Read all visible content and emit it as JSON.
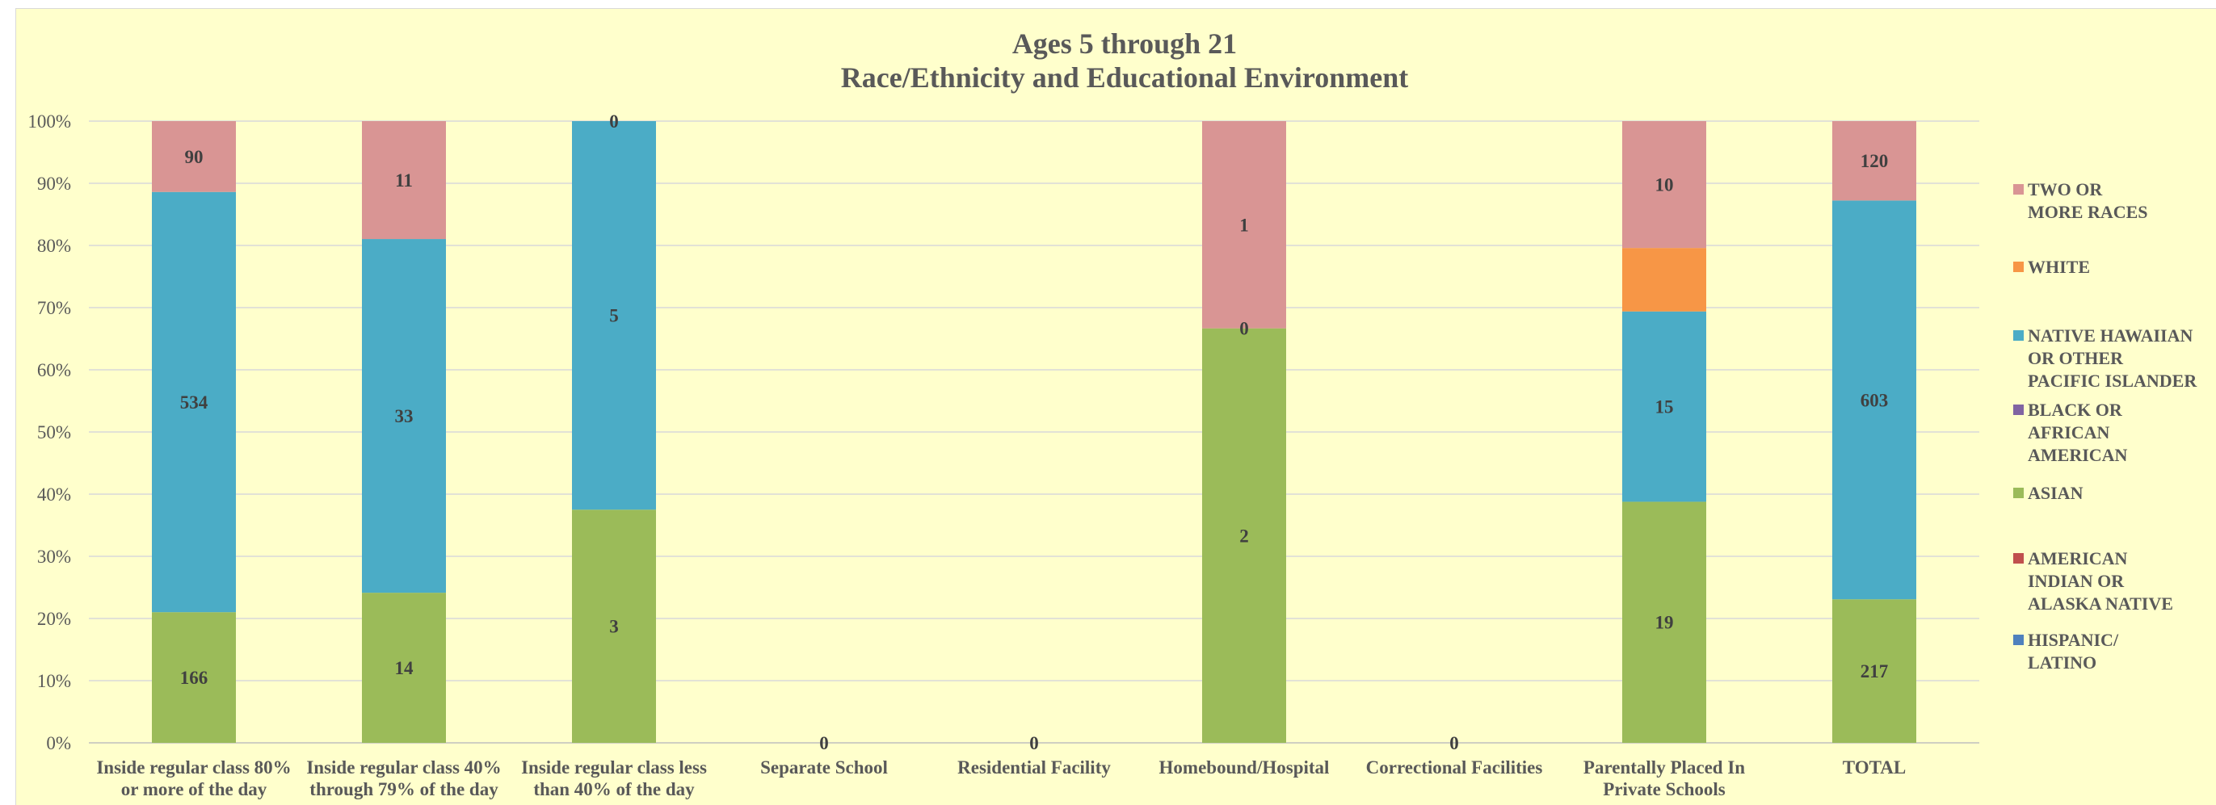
{
  "chart_data": {
    "type": "bar",
    "stacked": "percent",
    "title_line1": "Ages 5 through 21",
    "title_line2": "Race/Ethnicity and Educational Environment",
    "ylim": [
      0,
      100
    ],
    "y_ticks": [
      "0%",
      "10%",
      "20%",
      "30%",
      "40%",
      "50%",
      "60%",
      "70%",
      "80%",
      "90%",
      "100%"
    ],
    "grid": true,
    "legend_position": "right",
    "categories": [
      "Inside regular class 80% or more of the day",
      "Inside regular class 40% through 79% of the day",
      "Inside regular class less than 40% of the day",
      "Separate School",
      "Residential Facility",
      "Homebound/Hospital",
      "Correctional Facilities",
      "Parentally Placed In Private Schools",
      "TOTAL"
    ],
    "category_lines": [
      [
        "Inside regular class 80%",
        "or more of the day"
      ],
      [
        "Inside regular class 40%",
        "through 79% of the day"
      ],
      [
        "Inside regular class less",
        "than 40% of the day"
      ],
      [
        "Separate School"
      ],
      [
        "Residential Facility"
      ],
      [
        "Homebound/Hospital"
      ],
      [
        "Correctional Facilities"
      ],
      [
        "Parentally Placed In",
        "Private Schools"
      ],
      [
        "TOTAL"
      ]
    ],
    "series": [
      {
        "name": "HISPANIC/ LATINO",
        "legend_lines": [
          "HISPANIC/",
          "LATINO"
        ],
        "color": "#4f81bd",
        "values": [
          0,
          0,
          0,
          0,
          0,
          0,
          0,
          0,
          0
        ]
      },
      {
        "name": "AMERICAN INDIAN OR ALASKA NATIVE",
        "legend_lines": [
          "AMERICAN",
          "INDIAN OR",
          "ALASKA NATIVE"
        ],
        "color": "#c0504d",
        "values": [
          0,
          0,
          0,
          0,
          0,
          0,
          0,
          0,
          0
        ]
      },
      {
        "name": "ASIAN",
        "legend_lines": [
          "ASIAN"
        ],
        "color": "#9bbb59",
        "values": [
          166,
          14,
          3,
          0,
          0,
          2,
          0,
          19,
          217
        ]
      },
      {
        "name": "BLACK OR AFRICAN AMERICAN",
        "legend_lines": [
          "BLACK OR",
          "AFRICAN",
          "AMERICAN"
        ],
        "color": "#8064a2",
        "values": [
          0,
          0,
          0,
          0,
          0,
          0,
          0,
          0,
          0
        ]
      },
      {
        "name": "NATIVE HAWAIIAN OR OTHER PACIFIC ISLANDER",
        "legend_lines": [
          "NATIVE HAWAIIAN",
          "OR OTHER",
          "PACIFIC ISLANDER"
        ],
        "color": "#4bacc6",
        "values": [
          534,
          33,
          5,
          0,
          0,
          0,
          0,
          15,
          603
        ]
      },
      {
        "name": "WHITE",
        "legend_lines": [
          "WHITE"
        ],
        "color": "#f79646",
        "values": [
          0,
          0,
          0,
          0,
          0,
          0,
          0,
          5,
          0
        ]
      },
      {
        "name": "TWO OR MORE RACES",
        "legend_lines": [
          "TWO OR",
          "MORE RACES"
        ],
        "color": "#d99594",
        "values": [
          90,
          11,
          0,
          0,
          0,
          1,
          0,
          10,
          120
        ]
      }
    ],
    "data_labels": [
      [
        {
          "series": 2,
          "text": "166"
        },
        {
          "series": 4,
          "text": "534"
        },
        {
          "series": 6,
          "text": "90"
        }
      ],
      [
        {
          "series": 2,
          "text": "14"
        },
        {
          "series": 4,
          "text": "33"
        },
        {
          "series": 6,
          "text": "11"
        }
      ],
      [
        {
          "series": 2,
          "text": "3"
        },
        {
          "series": 4,
          "text": "5"
        },
        {
          "series": 6,
          "text": "0"
        }
      ],
      [
        {
          "series": null,
          "text": "0"
        }
      ],
      [
        {
          "series": null,
          "text": "0"
        }
      ],
      [
        {
          "series": 2,
          "text": "2"
        },
        {
          "series": 4,
          "text": "0"
        },
        {
          "series": 6,
          "text": "1"
        }
      ],
      [
        {
          "series": null,
          "text": "0"
        }
      ],
      [
        {
          "series": 2,
          "text": "19"
        },
        {
          "series": 4,
          "text": "15"
        },
        {
          "series": 6,
          "text": "10"
        }
      ],
      [
        {
          "series": 2,
          "text": "217"
        },
        {
          "series": 4,
          "text": "603"
        },
        {
          "series": 6,
          "text": "120"
        }
      ]
    ]
  }
}
